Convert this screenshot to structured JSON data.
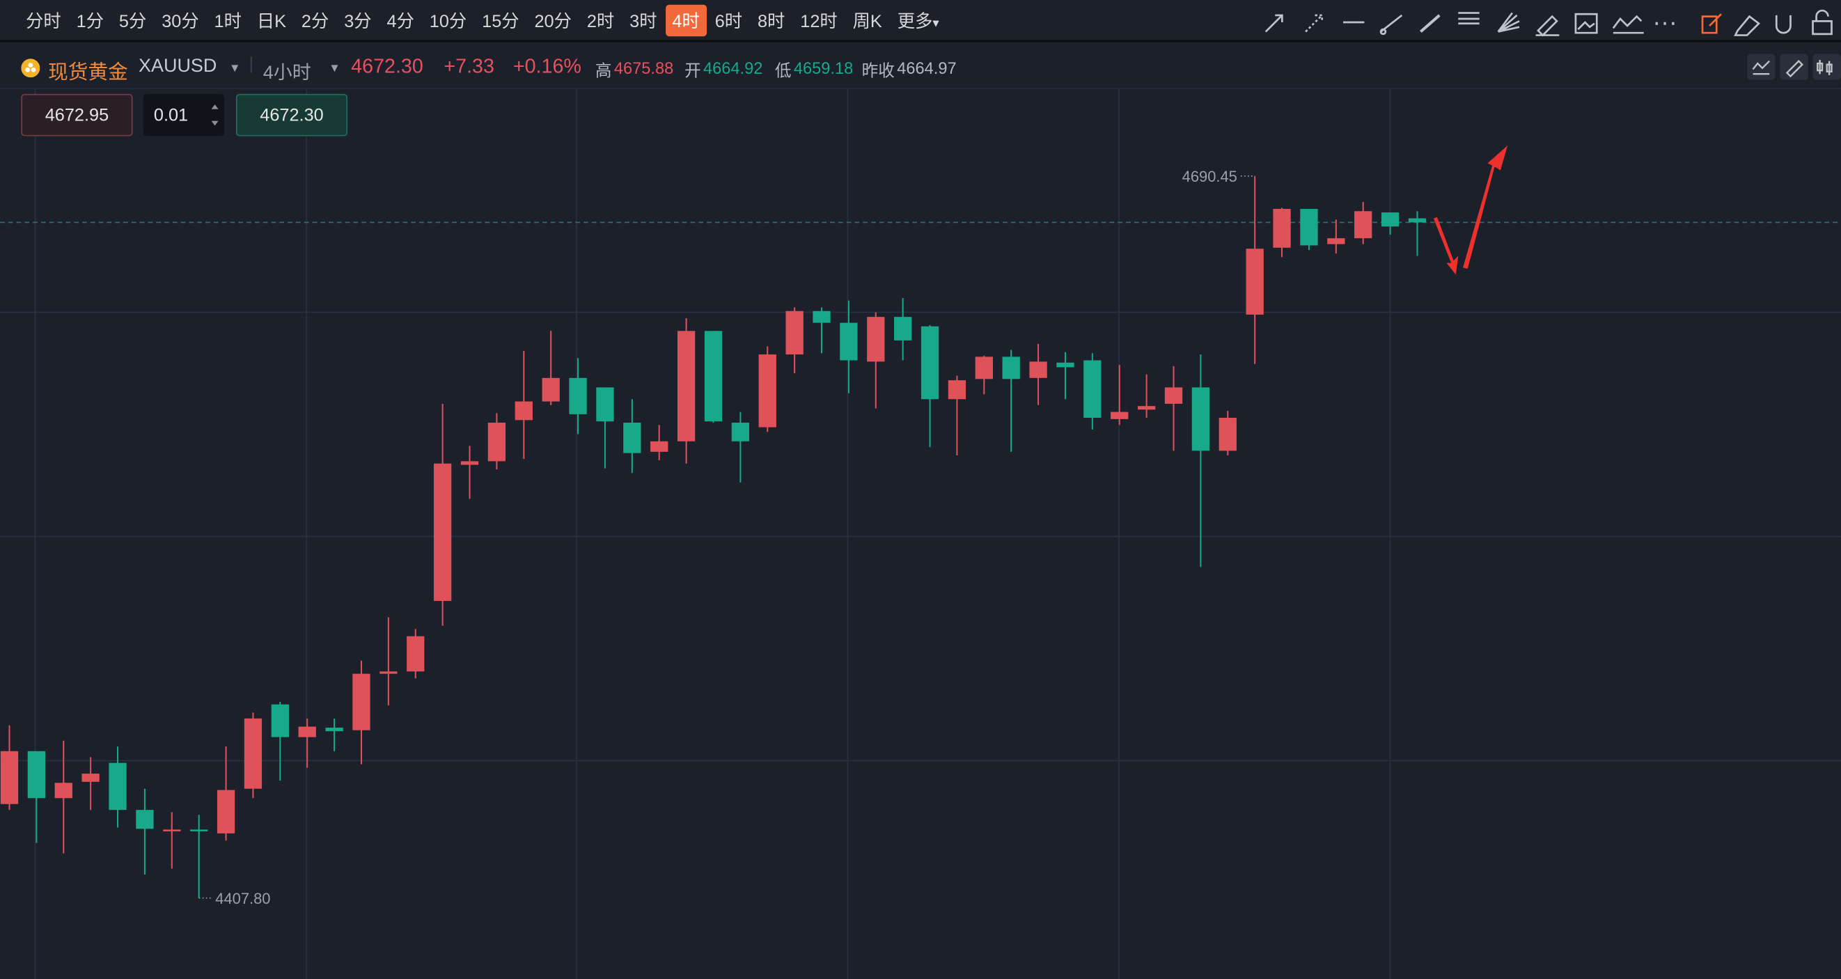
{
  "toolbar": {
    "intervals": [
      "分时",
      "1分",
      "5分",
      "30分",
      "1时",
      "日K",
      "2分",
      "3分",
      "4分",
      "10分",
      "15分",
      "20分",
      "2时",
      "3时",
      "4时",
      "6时",
      "8时",
      "12时",
      "周K",
      "更多"
    ],
    "active": 14
  },
  "header": {
    "name": "现货黄金",
    "symbol": "XAUUSD",
    "interval": "4小时",
    "price": "4672.30",
    "change": "+7.33",
    "change_pct": "+0.16%",
    "high_label": "高",
    "high": "4675.88",
    "open_label": "开",
    "open": "4664.92",
    "low_label": "低",
    "low": "4659.18",
    "prev_label": "昨收",
    "prev": "4664.97"
  },
  "order": {
    "sell": "4672.95",
    "qty": "0.01",
    "buy": "4672.30"
  },
  "chart_data": {
    "type": "candlestick",
    "up_color": "#e0525a",
    "down_color": "#17a98a",
    "ylim": [
      4376.1,
      4724.9
    ],
    "open": [
      4444.6,
      4465.3,
      4446.9,
      4453.3,
      4460.7,
      4442.3,
      4434.5,
      4434.6,
      4433.1,
      4450.6,
      4483.6,
      4470.8,
      4474.5,
      4473.5,
      4495.6,
      4496.5,
      4524.1,
      4577.4,
      4578.8,
      4594.9,
      4602.2,
      4611.4,
      4607.7,
      4593.9,
      4582.5,
      4586.6,
      4629.8,
      4593.9,
      4592.1,
      4620.6,
      4637.6,
      4633.0,
      4617.8,
      4635.3,
      4631.6,
      4603.1,
      4611.0,
      4619.7,
      4611.4,
      4617.4,
      4618.3,
      4595.3,
      4599.0,
      4601.3,
      4607.7,
      4582.9,
      4636.2,
      4662.4,
      4677.6,
      4663.8,
      4666.1,
      4676.2,
      4673.9
    ],
    "high": [
      4475.4,
      4465.3,
      4469.4,
      4463.0,
      4467.1,
      4450.6,
      4441.4,
      4440.4,
      4467.1,
      4480.4,
      4484.6,
      4478.1,
      4478.1,
      4500.7,
      4517.7,
      4513.1,
      4601.3,
      4584.8,
      4597.6,
      4622.0,
      4629.8,
      4619.2,
      4607.7,
      4603.1,
      4593.0,
      4634.8,
      4629.8,
      4598.1,
      4623.8,
      4639.0,
      4639.0,
      4641.7,
      4637.1,
      4642.7,
      4632.1,
      4612.3,
      4620.1,
      4622.4,
      4624.7,
      4621.5,
      4621.1,
      4616.5,
      4612.8,
      4616.0,
      4620.6,
      4598.5,
      4690.45,
      4678.0,
      4677.6,
      4673.4,
      4680.3,
      4676.2,
      4676.7
    ],
    "low": [
      4442.3,
      4429.4,
      4425.3,
      4442.3,
      4435.4,
      4417.0,
      4419.3,
      4407.8,
      4430.3,
      4446.9,
      4453.8,
      4458.8,
      4465.3,
      4460.2,
      4483.2,
      4493.8,
      4514.4,
      4564.1,
      4575.6,
      4579.7,
      4600.8,
      4589.4,
      4576.0,
      4574.2,
      4579.2,
      4577.9,
      4593.9,
      4570.5,
      4590.3,
      4613.3,
      4621.1,
      4605.4,
      4599.5,
      4618.3,
      4584.3,
      4581.1,
      4605.0,
      4582.5,
      4600.8,
      4603.1,
      4591.2,
      4593.0,
      4595.8,
      4582.9,
      4537.4,
      4581.1,
      4616.9,
      4658.7,
      4661.5,
      4660.1,
      4663.8,
      4667.5,
      4659.2
    ],
    "close": [
      4465.3,
      4446.9,
      4452.9,
      4456.5,
      4442.3,
      4434.9,
      4434.6,
      4434.5,
      4450.1,
      4478.1,
      4470.8,
      4474.9,
      4473.1,
      4495.6,
      4496.5,
      4510.3,
      4577.9,
      4578.8,
      4593.9,
      4602.2,
      4611.4,
      4597.2,
      4594.4,
      4582.0,
      4586.6,
      4629.8,
      4594.4,
      4586.6,
      4620.6,
      4637.6,
      4633.0,
      4618.3,
      4635.3,
      4626.1,
      4603.1,
      4610.5,
      4619.7,
      4611.0,
      4617.8,
      4615.6,
      4595.8,
      4598.1,
      4600.4,
      4607.7,
      4582.9,
      4595.8,
      4662.0,
      4677.6,
      4663.3,
      4666.1,
      4676.7,
      4670.7,
      4672.3
    ],
    "max_label": 4690.45,
    "min_label": {
      "value": 4407.8,
      "label": "4407.80"
    }
  }
}
